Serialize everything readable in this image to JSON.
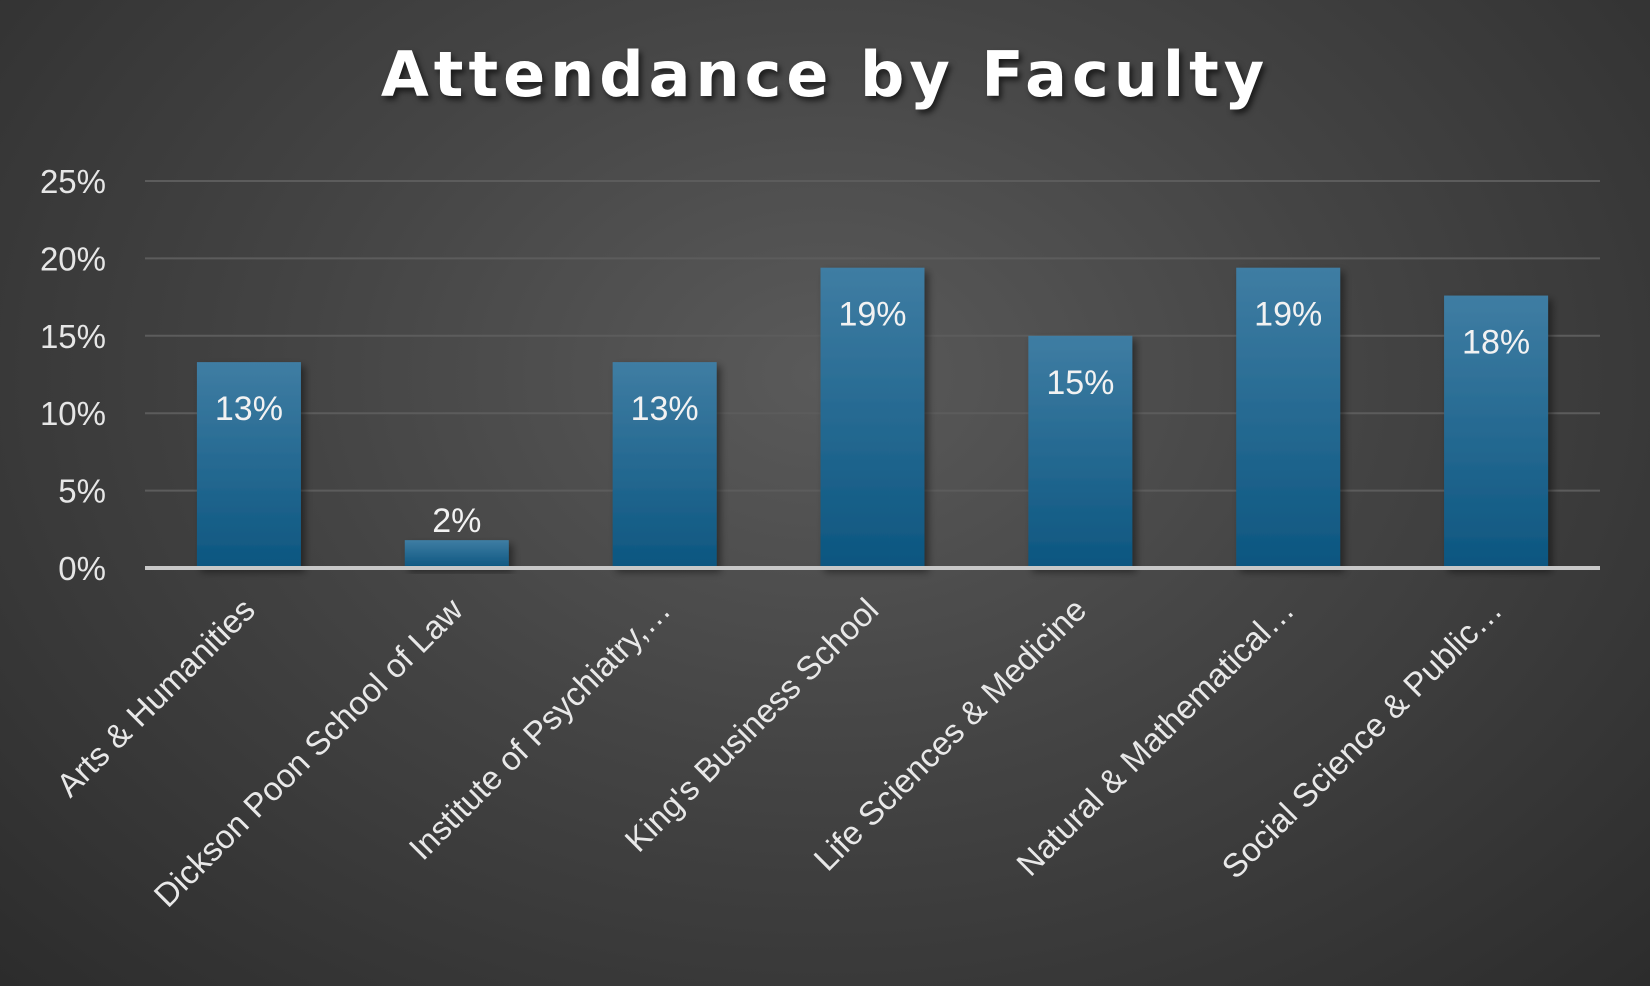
{
  "chart_data": {
    "type": "bar",
    "title": "Attendance by Faculty",
    "xlabel": "",
    "ylabel": "",
    "ylim": [
      0,
      25
    ],
    "yticks": [
      "0%",
      "5%",
      "10%",
      "15%",
      "20%",
      "25%"
    ],
    "ytick_values": [
      0,
      5,
      10,
      15,
      20,
      25
    ],
    "grid": true,
    "legend": "none",
    "categories": [
      "Arts & Humanities",
      "Dickson Poon School of Law",
      "Institute of Psychiatry,…",
      "King's Business School",
      "Life Sciences & Medicine",
      "Natural & Mathematical…",
      "Social Science & Public…"
    ],
    "values": [
      13.3,
      1.8,
      13.3,
      19.4,
      15.0,
      19.4,
      17.6
    ],
    "data_labels": [
      "13%",
      "2%",
      "13%",
      "19%",
      "15%",
      "19%",
      "18%"
    ],
    "bar_color_top": "#3f7da3",
    "bar_color_bottom": "#0c5680"
  }
}
